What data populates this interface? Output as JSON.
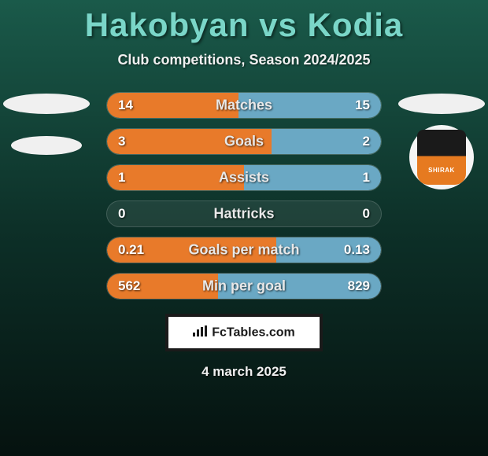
{
  "header": {
    "title": "Hakobyan vs Kodia",
    "subtitle": "Club competitions, Season 2024/2025"
  },
  "bars": [
    {
      "label": "Matches",
      "left": "14",
      "right": "15",
      "left_pct": 48,
      "right_pct": 52
    },
    {
      "label": "Goals",
      "left": "3",
      "right": "2",
      "left_pct": 60,
      "right_pct": 40
    },
    {
      "label": "Assists",
      "left": "1",
      "right": "1",
      "left_pct": 50,
      "right_pct": 50
    },
    {
      "label": "Hattricks",
      "left": "0",
      "right": "0",
      "left_pct": 0,
      "right_pct": 0
    },
    {
      "label": "Goals per match",
      "left": "0.21",
      "right": "0.13",
      "left_pct": 61.8,
      "right_pct": 38.2
    },
    {
      "label": "Min per goal",
      "left": "562",
      "right": "829",
      "left_pct": 40.4,
      "right_pct": 59.6
    }
  ],
  "colors": {
    "left_fill": "#e87a2a",
    "right_fill": "#6aa8c4",
    "title": "#7ad6c8",
    "text_light": "#f0f0f0",
    "bar_bg": "rgba(255,255,255,0.08)"
  },
  "logo": {
    "team": "SHIRAK"
  },
  "footer": {
    "brand": "FcTables.com",
    "date": "4 march 2025"
  }
}
